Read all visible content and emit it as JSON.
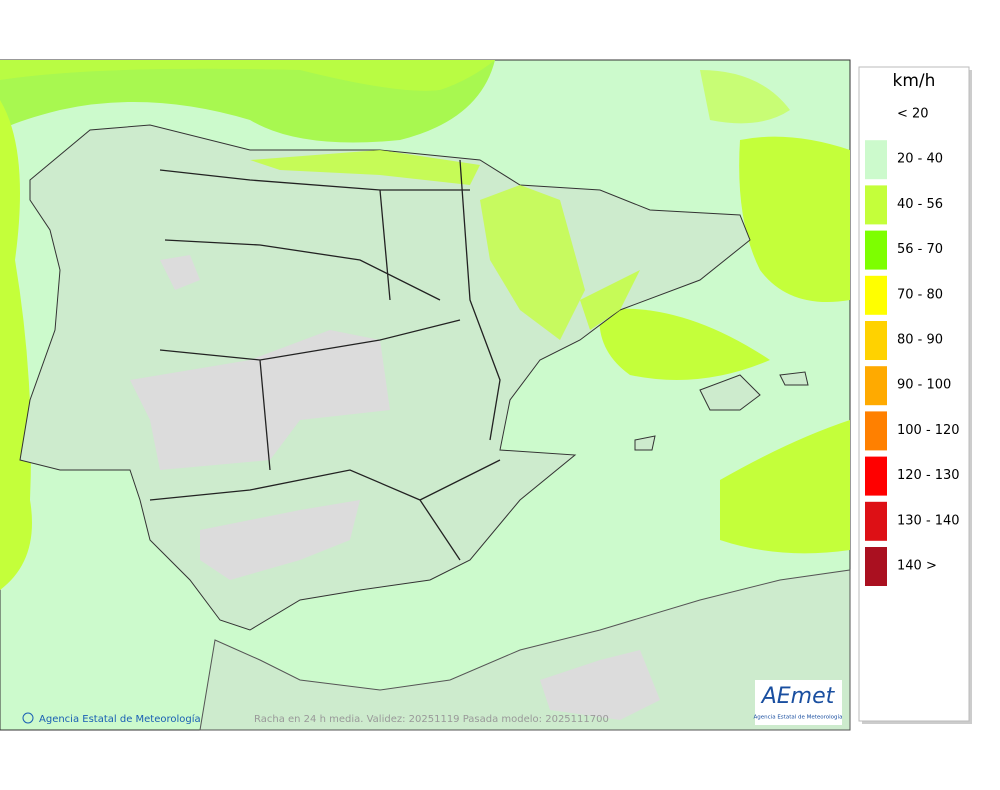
{
  "legend": {
    "unit": "km/h",
    "items": [
      {
        "label": "< 20"
      },
      {
        "label": "20 - 40",
        "color": "#ccfacc"
      },
      {
        "label": "40 - 56",
        "color": "#c4ff3a"
      },
      {
        "label": "56 - 70",
        "color": "#7dff00"
      },
      {
        "label": "70 - 80",
        "color": "#ffff00"
      },
      {
        "label": "80 - 90",
        "color": "#ffd200"
      },
      {
        "label": "90 - 100",
        "color": "#ffaa00"
      },
      {
        "label": "100 - 120",
        "color": "#ff8000"
      },
      {
        "label": "120 - 130",
        "color": "#ff0000"
      },
      {
        "label": "130 - 140",
        "color": "#dd1015"
      },
      {
        "label": "140 >",
        "color": "#aa1020"
      }
    ]
  },
  "footer": {
    "caption": "Racha en 24 h media. Validez: 20251119 Pasada modelo: 2025111700",
    "credit": "Agencia Estatal de Meteorología"
  },
  "logo": {
    "name": "AEmet",
    "subtitle": "Agencia Estatal de Meteorología"
  }
}
